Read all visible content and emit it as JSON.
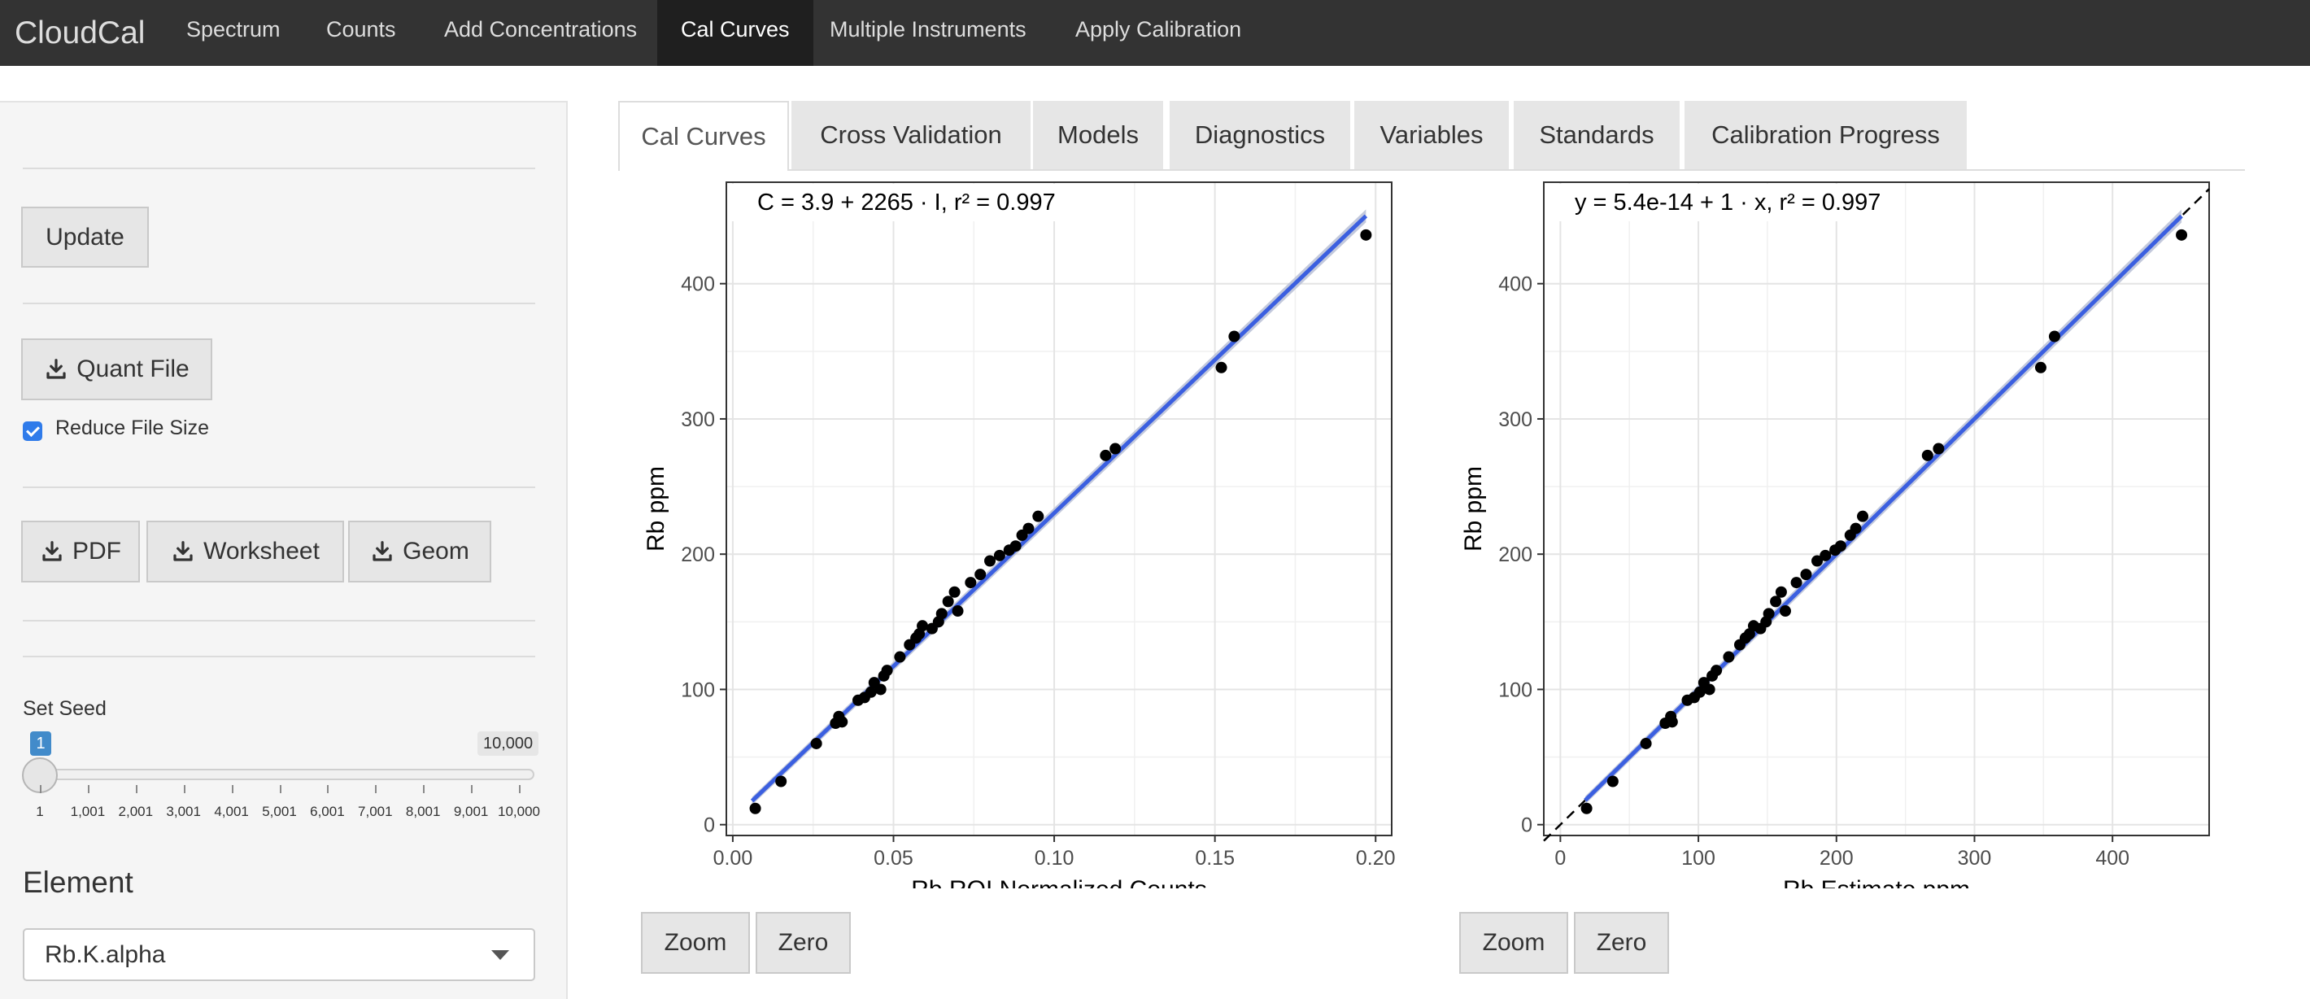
{
  "navbar": {
    "brand": "CloudCal",
    "items": [
      {
        "label": "Spectrum"
      },
      {
        "label": "Counts"
      },
      {
        "label": "Add Concentrations"
      },
      {
        "label": "Cal Curves",
        "active": true
      },
      {
        "label": "Multiple Instruments"
      },
      {
        "label": "Apply Calibration"
      }
    ]
  },
  "sidebar": {
    "update_label": "Update",
    "quant_label": "Quant File",
    "reduce_label": "Reduce File Size",
    "reduce_checked": true,
    "pdf_label": "PDF",
    "worksheet_label": "Worksheet",
    "geom_label": "Geom",
    "seed_label": "Set Seed",
    "seed_value": "1",
    "seed_max": "10,000",
    "seed_ticks": [
      "1",
      "1,001",
      "2,001",
      "3,001",
      "4,001",
      "5,001",
      "6,001",
      "7,001",
      "8,001",
      "9,001",
      "10,000"
    ],
    "element_label": "Element",
    "element_value": "Rb.K.alpha",
    "download_icon": "download-icon"
  },
  "tabs": [
    {
      "label": "Cal Curves",
      "active": true
    },
    {
      "label": "Cross Validation"
    },
    {
      "label": "Models"
    },
    {
      "label": "Diagnostics"
    },
    {
      "label": "Variables"
    },
    {
      "label": "Standards"
    },
    {
      "label": "Calibration Progress"
    }
  ],
  "plot_buttons": {
    "zoom": "Zoom",
    "zero": "Zero"
  },
  "colors": {
    "fit_line": "#3b5fe0",
    "ribbon": "#b8bfd6",
    "points": "#000000"
  },
  "chart_data": [
    {
      "type": "scatter",
      "equation": "C = 3.9 + 2265 · I,  r² = 0.997",
      "xlabel": "Rb ROI Normalized Counts",
      "ylabel": "Rb  ppm",
      "xlim": [
        -0.002,
        0.205
      ],
      "ylim": [
        -8,
        475
      ],
      "xticks": [
        0.0,
        0.05,
        0.1,
        0.15,
        0.2
      ],
      "xtick_labels": [
        "0.00",
        "0.05",
        "0.10",
        "0.15",
        "0.20"
      ],
      "yticks": [
        0,
        100,
        200,
        300,
        400
      ],
      "fit": {
        "intercept": 3.9,
        "slope": 2265,
        "x_range": [
          0.006,
          0.197
        ]
      },
      "points": [
        [
          0.007,
          12
        ],
        [
          0.015,
          32
        ],
        [
          0.026,
          60
        ],
        [
          0.032,
          75
        ],
        [
          0.033,
          80
        ],
        [
          0.034,
          76
        ],
        [
          0.039,
          92
        ],
        [
          0.041,
          94
        ],
        [
          0.043,
          98
        ],
        [
          0.044,
          105
        ],
        [
          0.046,
          100
        ],
        [
          0.047,
          110
        ],
        [
          0.048,
          114
        ],
        [
          0.052,
          124
        ],
        [
          0.055,
          133
        ],
        [
          0.057,
          138
        ],
        [
          0.058,
          141
        ],
        [
          0.059,
          147
        ],
        [
          0.062,
          145
        ],
        [
          0.064,
          150
        ],
        [
          0.065,
          156
        ],
        [
          0.067,
          165
        ],
        [
          0.069,
          172
        ],
        [
          0.07,
          158
        ],
        [
          0.074,
          179
        ],
        [
          0.077,
          185
        ],
        [
          0.08,
          195
        ],
        [
          0.083,
          199
        ],
        [
          0.086,
          203
        ],
        [
          0.088,
          206
        ],
        [
          0.09,
          214
        ],
        [
          0.092,
          219
        ],
        [
          0.095,
          228
        ],
        [
          0.116,
          273
        ],
        [
          0.119,
          278
        ],
        [
          0.152,
          338
        ],
        [
          0.156,
          361
        ],
        [
          0.197,
          436
        ]
      ]
    },
    {
      "type": "scatter",
      "equation": "y = 5.4e-14 + 1 · x,  r² = 0.997",
      "xlabel": "Rb  Estimate ppm",
      "ylabel": "Rb  ppm",
      "xlim": [
        -12,
        470
      ],
      "ylim": [
        -8,
        475
      ],
      "xticks": [
        0,
        100,
        200,
        300,
        400
      ],
      "xtick_labels": [
        "0",
        "100",
        "200",
        "300",
        "400"
      ],
      "yticks": [
        0,
        100,
        200,
        300,
        400
      ],
      "fit": {
        "intercept": 0,
        "slope": 1,
        "x_range": [
          18,
          450
        ]
      },
      "identity_line": true,
      "points": [
        [
          19,
          12
        ],
        [
          38,
          32
        ],
        [
          62,
          60
        ],
        [
          76,
          75
        ],
        [
          80,
          80
        ],
        [
          81,
          76
        ],
        [
          92,
          92
        ],
        [
          97,
          94
        ],
        [
          101,
          98
        ],
        [
          104,
          105
        ],
        [
          108,
          100
        ],
        [
          110,
          110
        ],
        [
          113,
          114
        ],
        [
          122,
          124
        ],
        [
          130,
          133
        ],
        [
          134,
          138
        ],
        [
          137,
          141
        ],
        [
          140,
          147
        ],
        [
          145,
          145
        ],
        [
          149,
          150
        ],
        [
          151,
          156
        ],
        [
          156,
          165
        ],
        [
          160,
          172
        ],
        [
          163,
          158
        ],
        [
          171,
          179
        ],
        [
          178,
          185
        ],
        [
          186,
          195
        ],
        [
          192,
          199
        ],
        [
          199,
          203
        ],
        [
          203,
          206
        ],
        [
          210,
          214
        ],
        [
          214,
          219
        ],
        [
          219,
          228
        ],
        [
          266,
          273
        ],
        [
          274,
          278
        ],
        [
          348,
          338
        ],
        [
          358,
          361
        ],
        [
          450,
          436
        ]
      ]
    }
  ]
}
